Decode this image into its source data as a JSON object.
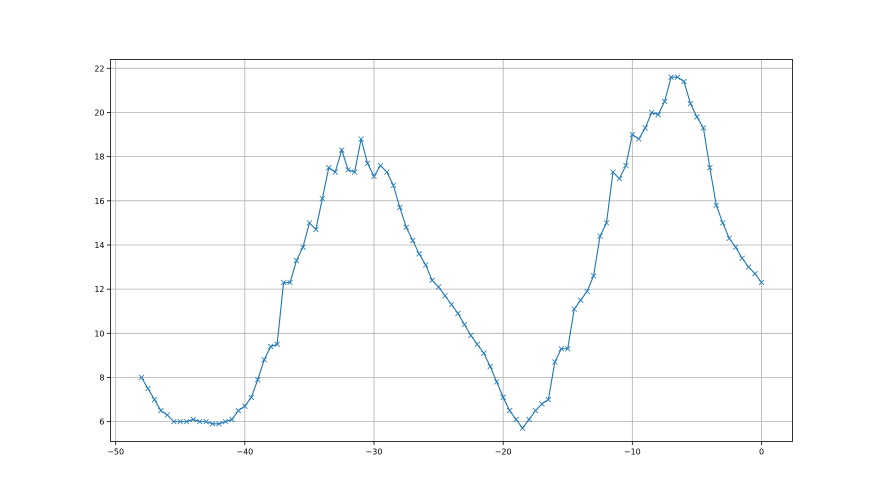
{
  "chart_data": {
    "type": "line",
    "title": "",
    "xlabel": "",
    "ylabel": "",
    "xlim": [
      -50.4,
      2.4
    ],
    "ylim": [
      5.1,
      22.4
    ],
    "xticks": [
      -50,
      -40,
      -30,
      -20,
      -10,
      0
    ],
    "yticks": [
      6,
      8,
      10,
      12,
      14,
      16,
      18,
      20,
      22
    ],
    "grid": true,
    "marker": "x",
    "color": "#1f77b4",
    "x": [
      -48,
      -47.5,
      -47,
      -46.5,
      -46,
      -45.5,
      -45,
      -44.5,
      -44,
      -43.5,
      -43,
      -42.5,
      -42,
      -41.5,
      -41,
      -40.5,
      -40,
      -39.5,
      -39,
      -38.5,
      -38,
      -37.5,
      -37,
      -36.5,
      -36,
      -35.5,
      -35,
      -34.5,
      -34,
      -33.5,
      -33,
      -32.5,
      -32,
      -31.5,
      -31,
      -30.5,
      -30,
      -29.5,
      -29,
      -28.5,
      -28,
      -27.5,
      -27,
      -26.5,
      -26,
      -25.5,
      -25,
      -24.5,
      -24,
      -23.5,
      -23,
      -22.5,
      -22,
      -21.5,
      -21,
      -20.5,
      -20,
      -19.5,
      -19,
      -18.5,
      -18,
      -17.5,
      -17,
      -16.5,
      -16,
      -15.5,
      -15,
      -14.5,
      -14,
      -13.5,
      -13,
      -12.5,
      -12,
      -11.5,
      -11,
      -10.5,
      -10,
      -9.5,
      -9,
      -8.5,
      -8,
      -7.5,
      -7,
      -6.5,
      -6,
      -5.5,
      -5,
      -4.5,
      -4,
      -3.5,
      -3,
      -2.5,
      -2,
      -1.5,
      -1,
      -0.5,
      0
    ],
    "y": [
      8.0,
      7.5,
      7.0,
      6.5,
      6.3,
      6.0,
      6.0,
      6.0,
      6.1,
      6.0,
      6.0,
      5.9,
      5.9,
      6.0,
      6.1,
      6.5,
      6.7,
      7.1,
      7.9,
      8.8,
      9.4,
      9.5,
      12.3,
      12.3,
      13.3,
      13.9,
      15.0,
      14.7,
      16.1,
      17.5,
      17.3,
      18.3,
      17.4,
      17.3,
      18.8,
      17.7,
      17.1,
      17.6,
      17.3,
      16.7,
      15.7,
      14.8,
      14.2,
      13.6,
      13.1,
      12.4,
      12.1,
      11.7,
      11.3,
      10.9,
      10.4,
      9.9,
      9.5,
      9.1,
      8.5,
      7.8,
      7.1,
      6.5,
      6.1,
      5.7,
      6.1,
      6.5,
      6.8,
      7.0,
      8.7,
      9.3,
      9.3,
      11.1,
      11.5,
      11.9,
      12.6,
      14.4,
      15.0,
      17.3,
      17.0,
      17.6,
      19.0,
      18.8,
      19.3,
      20.0,
      19.9,
      20.5,
      21.6,
      21.6,
      21.4,
      20.4,
      19.8,
      19.3,
      17.5,
      15.8,
      15.0,
      14.3,
      13.9,
      13.4,
      13.0,
      12.7,
      12.3
    ]
  }
}
